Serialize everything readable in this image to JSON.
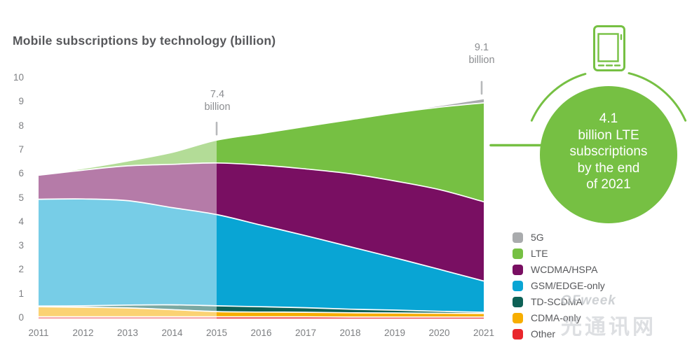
{
  "header": {
    "title": "Mobile subscriptions by technology (billion)"
  },
  "theme": {
    "accent": "#76c043",
    "title_color": "#57585b",
    "axis_color": "#7d7f82",
    "annotation_color": "#8b8d90",
    "tick_mark_color": "#b7b9bb"
  },
  "chart_data": {
    "type": "area",
    "stacked": true,
    "title": "Mobile subscriptions by technology (billion)",
    "x": [
      2011,
      2012,
      2013,
      2014,
      2015,
      2016,
      2017,
      2018,
      2019,
      2020,
      2021
    ],
    "xlabel": "",
    "ylabel": "",
    "ylim": [
      0,
      10
    ],
    "y_ticks": [
      0,
      1,
      2,
      3,
      4,
      5,
      6,
      7,
      8,
      9,
      10
    ],
    "grid": false,
    "history_shaded_through": 2015,
    "series": [
      {
        "name": "Other",
        "color": "#e9262c",
        "values": [
          0.04,
          0.04,
          0.04,
          0.04,
          0.04,
          0.04,
          0.04,
          0.03,
          0.03,
          0.03,
          0.03
        ]
      },
      {
        "name": "CDMA-only",
        "color": "#f7ae00",
        "values": [
          0.42,
          0.4,
          0.37,
          0.3,
          0.22,
          0.2,
          0.19,
          0.18,
          0.17,
          0.16,
          0.15
        ]
      },
      {
        "name": "TD-SCDMA",
        "color": "#0e6156",
        "values": [
          0.03,
          0.06,
          0.12,
          0.2,
          0.24,
          0.22,
          0.19,
          0.15,
          0.12,
          0.08,
          0.05
        ]
      },
      {
        "name": "GSM/EDGE-only",
        "color": "#09a5d4",
        "values": [
          4.45,
          4.45,
          4.35,
          4.05,
          3.8,
          3.4,
          3.0,
          2.6,
          2.18,
          1.75,
          1.3
        ]
      },
      {
        "name": "WCDMA/HSPA",
        "color": "#790f62",
        "values": [
          1.0,
          1.2,
          1.45,
          1.8,
          2.15,
          2.5,
          2.78,
          3.04,
          3.2,
          3.32,
          3.3
        ]
      },
      {
        "name": "LTE",
        "color": "#76c043",
        "values": [
          0.01,
          0.07,
          0.2,
          0.5,
          0.95,
          1.32,
          1.77,
          2.25,
          2.83,
          3.43,
          4.12
        ]
      },
      {
        "name": "5G",
        "color": "#a9abad",
        "values": [
          0,
          0,
          0,
          0,
          0,
          0,
          0,
          0,
          0,
          0.04,
          0.15
        ]
      }
    ],
    "legend": {
      "position": "right",
      "order_top_to_bottom": [
        "5G",
        "LTE",
        "WCDMA/HSPA",
        "GSM/EDGE-only",
        "TD-SCDMA",
        "CDMA-only",
        "Other"
      ]
    },
    "annotations": [
      {
        "year": 2015,
        "total": 7.4,
        "label": "7.4\nbillion"
      },
      {
        "year": 2021,
        "total": 9.1,
        "label": "9.1\nbillion"
      }
    ]
  },
  "callout": {
    "text": "4.1\nbillion LTE\nsubscriptions\nby the end\nof 2021"
  },
  "watermark": {
    "brand": "OFweek",
    "site": "光通讯网"
  }
}
